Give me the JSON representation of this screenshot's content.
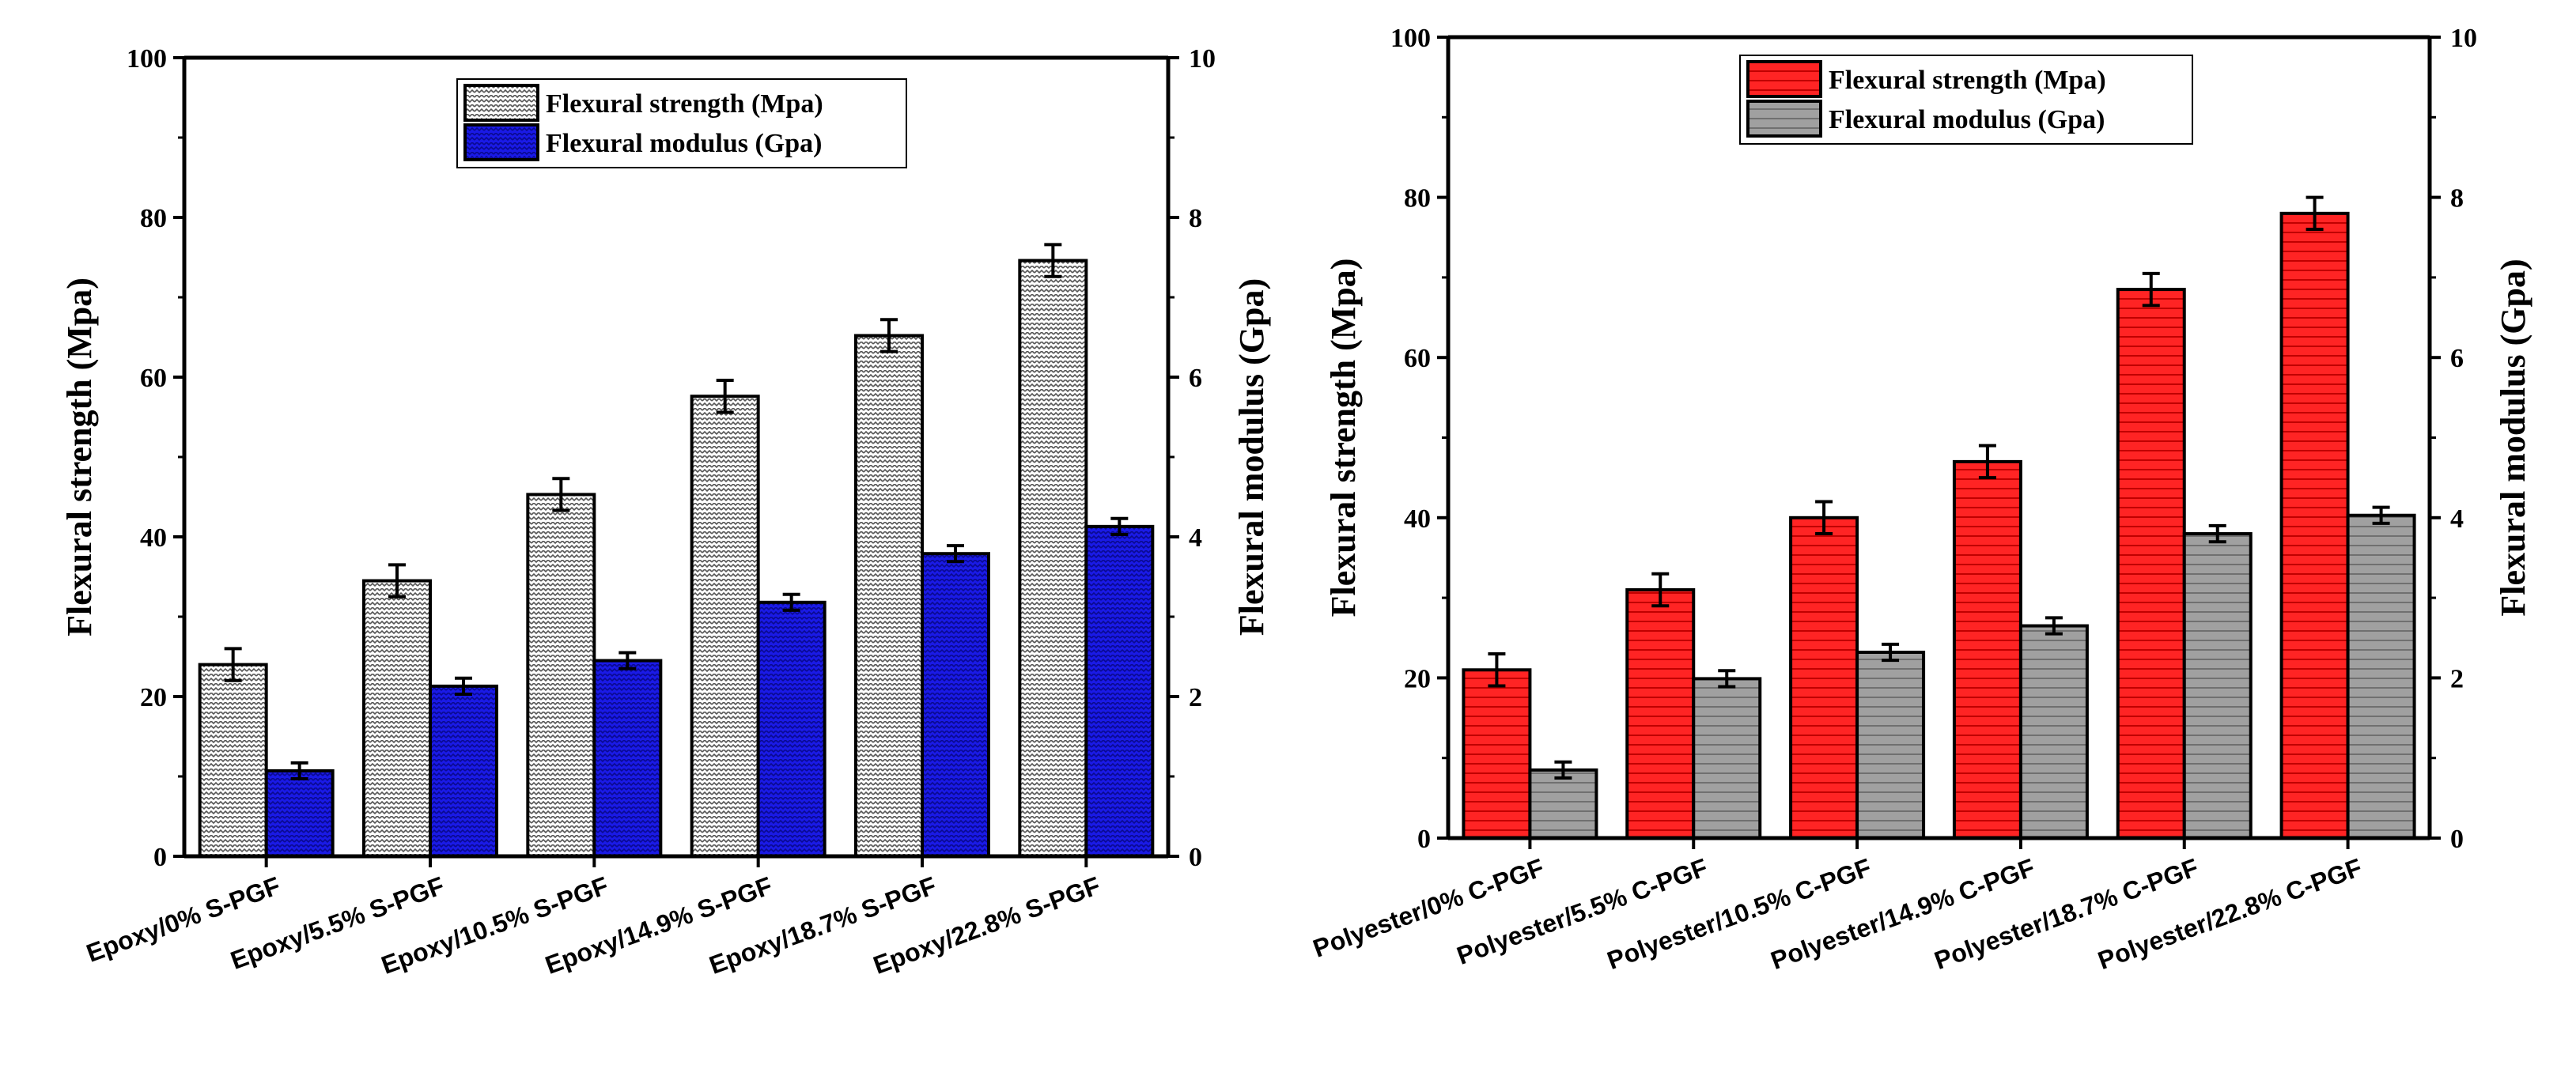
{
  "chart_data": [
    {
      "type": "bar",
      "categories": [
        "Epoxy/0% S-PGF",
        "Epoxy/5.5% S-PGF",
        "Epoxy/10.5% S-PGF",
        "Epoxy/14.9% S-PGF",
        "Epoxy/18.7% S-PGF",
        "Epoxy/22.8% S-PGF"
      ],
      "series": [
        {
          "name": "Flexural strength  (Mpa)",
          "axis": "left",
          "values": [
            24,
            34.5,
            45.3,
            57.6,
            65.2,
            74.6
          ],
          "errors": [
            2.0,
            2.0,
            2.0,
            2.0,
            2.0,
            2.0
          ],
          "color": "#ffffff",
          "pattern": "hatch-gray"
        },
        {
          "name": "Flexural modulus (Gpa)",
          "axis": "right",
          "values": [
            1.07,
            2.13,
            2.45,
            3.18,
            3.79,
            4.13
          ],
          "errors": [
            0.1,
            0.1,
            0.1,
            0.1,
            0.1,
            0.1
          ],
          "color": "#1616e0",
          "pattern": "hatch-blue"
        }
      ],
      "ylabel": "Flexural strength  (Mpa)",
      "y2label": "Flexural modulus (Gpa)",
      "ylim": [
        0,
        100
      ],
      "y2lim": [
        0,
        10
      ],
      "yticks": [
        "0",
        "20",
        "40",
        "60",
        "80",
        "100"
      ],
      "y2ticks": [
        "0",
        "2",
        "4",
        "6",
        "8",
        "10"
      ],
      "legend_position": "top-center"
    },
    {
      "type": "bar",
      "categories": [
        "Polyester/0% C-PGF",
        "Polyester/5.5% C-PGF",
        "Polyester/10.5% C-PGF",
        "Polyester/14.9% C-PGF",
        "Polyester/18.7% C-PGF",
        "Polyester/22.8% C-PGF"
      ],
      "series": [
        {
          "name": "Flexural strength  (Mpa)",
          "axis": "left",
          "values": [
            21,
            31,
            40,
            47,
            68.5,
            78
          ],
          "errors": [
            2.0,
            2.0,
            2.0,
            2.0,
            2.0,
            2.0
          ],
          "color": "#ff2020",
          "pattern": "hatch-red"
        },
        {
          "name": "Flexural modulus (Gpa)",
          "axis": "right",
          "values": [
            0.85,
            1.99,
            2.32,
            2.65,
            3.8,
            4.03
          ],
          "errors": [
            0.1,
            0.1,
            0.1,
            0.1,
            0.1,
            0.1
          ],
          "color": "#9a9a9a",
          "pattern": "hatch-gray2"
        }
      ],
      "ylabel": "Flexural strength  (Mpa)",
      "y2label": "Flexural modulus (Gpa)",
      "ylim": [
        0,
        100
      ],
      "y2lim": [
        0,
        10
      ],
      "yticks": [
        "0",
        "20",
        "40",
        "60",
        "80",
        "100"
      ],
      "y2ticks": [
        "0",
        "2",
        "4",
        "6",
        "8",
        "10"
      ],
      "legend_position": "top-center"
    }
  ]
}
